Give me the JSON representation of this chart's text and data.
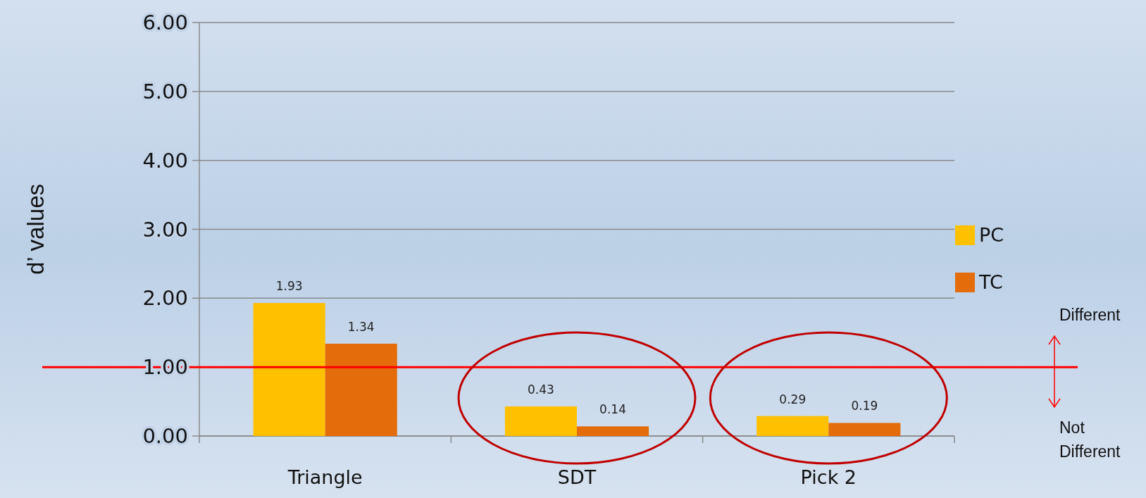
{
  "chart_data": {
    "type": "bar",
    "ylabel": "d’ values",
    "categories": [
      "Triangle",
      "SDT",
      "Pick 2"
    ],
    "series": [
      {
        "name": "PC",
        "color": "#ffc000",
        "values": [
          1.93,
          0.43,
          0.29
        ]
      },
      {
        "name": "TC",
        "color": "#e46c0a",
        "values": [
          1.34,
          0.14,
          0.19
        ]
      }
    ],
    "ylim": [
      0,
      6
    ],
    "yticks": [
      {
        "value": 0,
        "label": "0.00"
      },
      {
        "value": 1,
        "label": "1.00"
      },
      {
        "value": 2,
        "label": "2.00"
      },
      {
        "value": 3,
        "label": "3.00"
      },
      {
        "value": 4,
        "label": "4.00"
      },
      {
        "value": 5,
        "label": "5.00"
      },
      {
        "value": 6,
        "label": "6.00"
      }
    ],
    "grid": "y",
    "legend": "right",
    "data_labels": true,
    "ref_lines": [
      {
        "axis": "y",
        "value": 1,
        "color": "#ff0000"
      }
    ],
    "annotations": [
      "Different",
      "Not Different"
    ]
  }
}
